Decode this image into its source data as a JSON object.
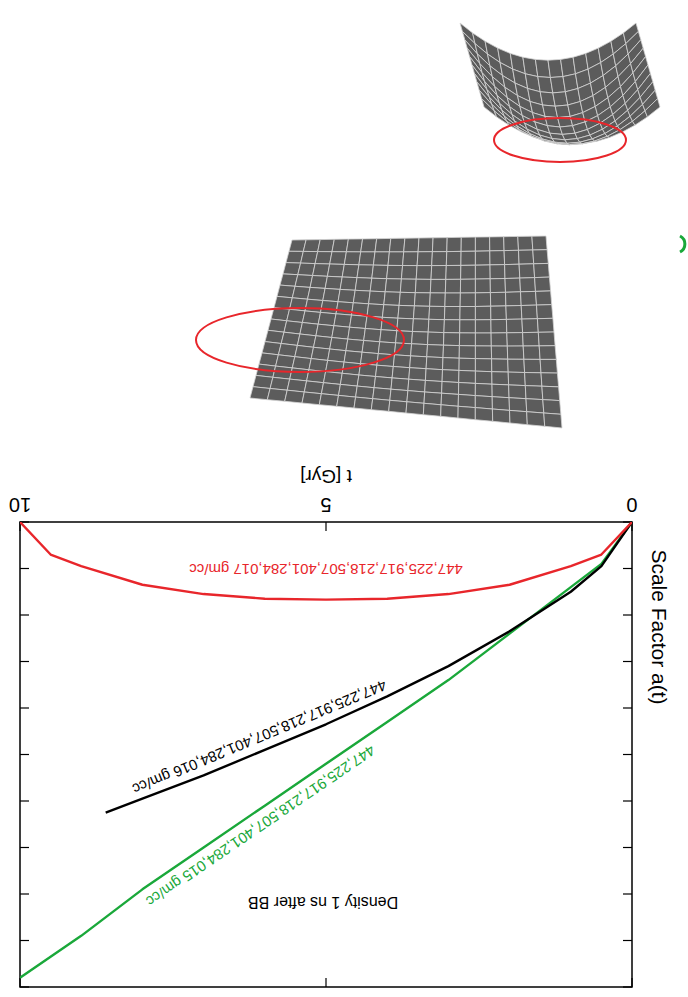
{
  "chart_data": {
    "type": "line",
    "annotation": "Density 1 ns after BB",
    "xlabel": "t [Gyr]",
    "ylabel": "Scale Factor a(t)",
    "xlim": [
      0,
      10
    ],
    "ylim": [
      0,
      10
    ],
    "xticks": [
      0,
      5,
      10
    ],
    "yticks": [
      0,
      1,
      2,
      3,
      4,
      5,
      6,
      7,
      8,
      9,
      10
    ],
    "tick_labels": "x",
    "grid": false,
    "series": [
      {
        "name": "447,225,917,218,507,401,284,015 gm/cc",
        "color": "#1aa83a",
        "x": [
          0,
          0.5,
          1,
          2,
          3,
          4,
          5,
          6,
          7,
          8,
          9,
          10
        ],
        "values": [
          0,
          0.9,
          1.4,
          2.4,
          3.4,
          4.3,
          5.2,
          6.1,
          7.0,
          7.9,
          8.9,
          9.8
        ]
      },
      {
        "name": "447,225,917,218,507,401,284,016 gm/cc",
        "color": "#000000",
        "x": [
          0,
          0.5,
          1,
          2,
          3,
          4,
          5,
          6,
          7,
          8,
          8.6
        ],
        "values": [
          0,
          0.95,
          1.5,
          2.35,
          3.1,
          3.75,
          4.35,
          4.9,
          5.45,
          5.95,
          6.25
        ]
      },
      {
        "name": "447,225,917,218,507,401,284,017 gm/cc",
        "color": "#e8262b",
        "x": [
          0,
          0.5,
          1,
          2,
          3,
          4,
          5,
          6,
          7,
          8,
          9,
          9.5,
          10
        ],
        "values": [
          0,
          0.7,
          0.95,
          1.35,
          1.55,
          1.65,
          1.67,
          1.65,
          1.55,
          1.35,
          0.95,
          0.7,
          0
        ]
      }
    ]
  }
}
